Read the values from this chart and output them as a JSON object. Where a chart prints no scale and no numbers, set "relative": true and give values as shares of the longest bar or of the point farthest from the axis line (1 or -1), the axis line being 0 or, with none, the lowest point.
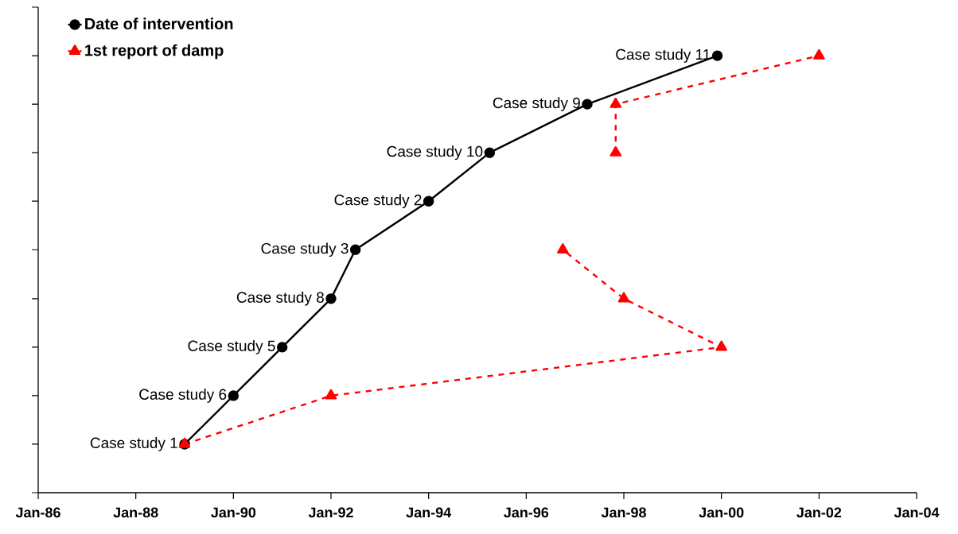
{
  "chart_data": {
    "type": "line",
    "series": [
      {
        "name": "Date of intervention",
        "color": "#000000",
        "marker": "circle",
        "line_style": "solid",
        "x": [
          "1989-01",
          "1990-01",
          "1991-01",
          "1992-01",
          "1992-07",
          "1994-01",
          "1995-04",
          "1997-04",
          "1999-12"
        ],
        "values": [
          0.111,
          0.222,
          0.333,
          0.444,
          0.556,
          0.667,
          0.778,
          0.889,
          1
        ]
      },
      {
        "name": "1st report of damp",
        "color": "#ff0000",
        "marker": "triangle",
        "line_style": "dashed",
        "x": [
          "1989-01",
          "1992-01",
          "2000-01",
          "1998-01",
          "1996-10",
          null,
          "1997-11",
          "1997-11",
          "2002-01"
        ],
        "values": [
          0.111,
          0.222,
          0.333,
          0.444,
          0.556,
          null,
          0.778,
          0.889,
          1
        ]
      }
    ],
    "annotations": [
      {
        "text": "Case study 1",
        "x": "1989-01",
        "y": 0.111
      },
      {
        "text": "Case study 6",
        "x": "1990-01",
        "y": 0.222
      },
      {
        "text": "Case study 5",
        "x": "1991-01",
        "y": 0.333
      },
      {
        "text": "Case study 8",
        "x": "1992-01",
        "y": 0.444
      },
      {
        "text": "Case study 3",
        "x": "1992-07",
        "y": 0.556
      },
      {
        "text": "Case study 2",
        "x": "1994-01",
        "y": 0.667
      },
      {
        "text": "Case study 10",
        "x": "1995-04",
        "y": 0.778
      },
      {
        "text": "Case study 9",
        "x": "1997-04",
        "y": 0.889
      },
      {
        "text": "Case study 11",
        "x": "1999-12",
        "y": 1
      }
    ],
    "xlim": [
      "1986-01",
      "2004-01"
    ],
    "xticks": [
      {
        "value": "1986-01",
        "label": "Jan-86"
      },
      {
        "value": "1988-01",
        "label": "Jan-88"
      },
      {
        "value": "1990-01",
        "label": "Jan-90"
      },
      {
        "value": "1992-01",
        "label": "Jan-92"
      },
      {
        "value": "1994-01",
        "label": "Jan-94"
      },
      {
        "value": "1996-01",
        "label": "Jan-96"
      },
      {
        "value": "1998-01",
        "label": "Jan-98"
      },
      {
        "value": "2000-01",
        "label": "Jan-00"
      },
      {
        "value": "2002-01",
        "label": "Jan-02"
      },
      {
        "value": "2004-01",
        "label": "Jan-04"
      }
    ],
    "relative": true,
    "tick_labels": "x",
    "grid": false,
    "legend": "top left"
  }
}
